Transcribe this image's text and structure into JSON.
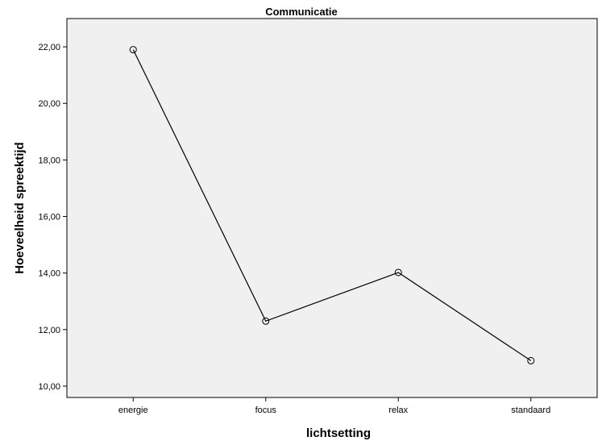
{
  "chart_data": {
    "type": "line",
    "title": "Communicatie",
    "xlabel": "lichtsetting",
    "ylabel": "Hoeveelheid spreektijd",
    "categories": [
      "energie",
      "focus",
      "relax",
      "standaard"
    ],
    "series": [
      {
        "values": [
          21.9,
          12.3,
          14.02,
          10.9
        ]
      }
    ],
    "ylim": [
      9.6,
      23.0
    ],
    "yticks": [
      "10,00",
      "12,00",
      "14,00",
      "16,00",
      "18,00",
      "20,00",
      "22,00"
    ],
    "grid": false,
    "marker": "open-circle",
    "line_color": "#000000",
    "background_color": "#f0f0f0"
  }
}
